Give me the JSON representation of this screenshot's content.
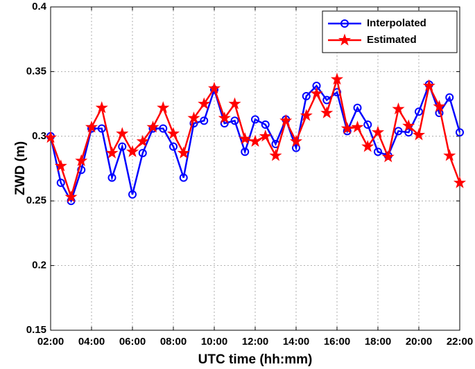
{
  "chart_data": {
    "type": "line",
    "xlabel": "UTC time (hh:mm)",
    "ylabel": "ZWD  (m)",
    "x": [
      2,
      2.5,
      3,
      3.5,
      4,
      4.5,
      5,
      5.5,
      6,
      6.5,
      7,
      7.5,
      8,
      8.5,
      9,
      9.5,
      10,
      10.5,
      11,
      11.5,
      12,
      12.5,
      13,
      13.5,
      14,
      14.5,
      15,
      15.5,
      16,
      16.5,
      17,
      17.5,
      18,
      18.5,
      19,
      19.5,
      20,
      20.5,
      21,
      21.5,
      22
    ],
    "series": [
      {
        "name": "Interpolated",
        "color": "#0000ff",
        "marker": "circle",
        "values": [
          0.3,
          0.264,
          0.25,
          0.274,
          0.306,
          0.306,
          0.268,
          0.292,
          0.255,
          0.287,
          0.306,
          0.306,
          0.292,
          0.268,
          0.31,
          0.312,
          0.336,
          0.31,
          0.312,
          0.288,
          0.313,
          0.309,
          0.294,
          0.313,
          0.291,
          0.331,
          0.339,
          0.328,
          0.334,
          0.304,
          0.322,
          0.309,
          0.288,
          0.285,
          0.304,
          0.303,
          0.319,
          0.34,
          0.318,
          0.33,
          0.303
        ]
      },
      {
        "name": "Estimated",
        "color": "#ff0000",
        "marker": "star",
        "values": [
          0.299,
          0.277,
          0.253,
          0.281,
          0.307,
          0.322,
          0.287,
          0.302,
          0.288,
          0.296,
          0.307,
          0.322,
          0.302,
          0.287,
          0.314,
          0.325,
          0.337,
          0.314,
          0.325,
          0.298,
          0.296,
          0.3,
          0.285,
          0.312,
          0.296,
          0.316,
          0.333,
          0.318,
          0.344,
          0.306,
          0.307,
          0.292,
          0.303,
          0.284,
          0.321,
          0.308,
          0.301,
          0.339,
          0.323,
          0.285,
          0.264
        ]
      }
    ],
    "xlim": [
      2,
      22
    ],
    "xticks": [
      {
        "value": 2,
        "label": "02:00"
      },
      {
        "value": 4,
        "label": "04:00"
      },
      {
        "value": 6,
        "label": "06:00"
      },
      {
        "value": 8,
        "label": "08:00"
      },
      {
        "value": 10,
        "label": "10:00"
      },
      {
        "value": 12,
        "label": "12:00"
      },
      {
        "value": 14,
        "label": "14:00"
      },
      {
        "value": 16,
        "label": "16:00"
      },
      {
        "value": 18,
        "label": "18:00"
      },
      {
        "value": 20,
        "label": "20:00"
      },
      {
        "value": 22,
        "label": "22:00"
      }
    ],
    "ylim": [
      0.15,
      0.4
    ],
    "yticks": [
      0.15,
      0.2,
      0.25,
      0.3,
      0.35,
      0.4
    ],
    "grid": true,
    "legend": "upper right"
  }
}
